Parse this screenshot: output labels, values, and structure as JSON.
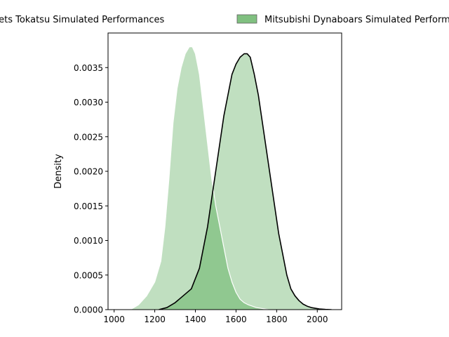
{
  "chart_data": {
    "type": "area",
    "title": "",
    "xlabel": "",
    "ylabel": "Density",
    "xlim": [
      970,
      2120
    ],
    "ylim": [
      0,
      0.004
    ],
    "x_ticks": [
      1000,
      1200,
      1400,
      1600,
      1800,
      2000
    ],
    "x_tick_labels": [
      "1000",
      "1200",
      "1400",
      "1600",
      "1800",
      "2000"
    ],
    "y_ticks": [
      0,
      0.0005,
      0.001,
      0.0015,
      0.002,
      0.0025,
      0.003,
      0.0035
    ],
    "y_tick_labels": [
      "0.0000",
      "0.0005",
      "0.0010",
      "0.0015",
      "0.0020",
      "0.0025",
      "0.0030",
      "0.0035"
    ],
    "legend_position": "top-center",
    "grid": false,
    "series": [
      {
        "name": "Green Rockets Tokatsu Simulated Performances",
        "fill_color": "#c0dfc0",
        "edge_color": "#ffffff",
        "x": [
          1080,
          1120,
          1160,
          1200,
          1230,
          1250,
          1270,
          1290,
          1310,
          1330,
          1350,
          1370,
          1385,
          1400,
          1420,
          1440,
          1460,
          1480,
          1500,
          1520,
          1540,
          1560,
          1580,
          1600,
          1620,
          1640,
          1660,
          1680,
          1700,
          1720,
          1740,
          1760
        ],
        "y": [
          0.0,
          7e-05,
          0.0002,
          0.0004,
          0.0007,
          0.0012,
          0.0019,
          0.0027,
          0.0032,
          0.0035,
          0.0037,
          0.0038,
          0.0038,
          0.0037,
          0.0034,
          0.0029,
          0.0024,
          0.0019,
          0.0015,
          0.0012,
          0.0009,
          0.0006,
          0.0004,
          0.00025,
          0.00015,
          0.0001,
          7e-05,
          5e-05,
          3e-05,
          2e-05,
          1e-05,
          0.0
        ]
      },
      {
        "name": "Mitsubishi Dynaboars Simulated Performances",
        "fill_color": "#c0dfc0",
        "edge_color": "#000000",
        "x": [
          1220,
          1260,
          1300,
          1340,
          1380,
          1420,
          1460,
          1480,
          1500,
          1520,
          1540,
          1560,
          1580,
          1600,
          1620,
          1640,
          1655,
          1670,
          1690,
          1710,
          1730,
          1750,
          1770,
          1790,
          1810,
          1830,
          1850,
          1870,
          1890,
          1910,
          1930,
          1950,
          1970,
          1990,
          2010,
          2040,
          2070
        ],
        "y": [
          0.0,
          3e-05,
          0.0001,
          0.0002,
          0.0003,
          0.0006,
          0.0012,
          0.0016,
          0.002,
          0.0024,
          0.0028,
          0.0031,
          0.0034,
          0.00355,
          0.00365,
          0.0037,
          0.0037,
          0.00365,
          0.0034,
          0.0031,
          0.0027,
          0.0023,
          0.0019,
          0.0015,
          0.0011,
          0.0008,
          0.0005,
          0.0003,
          0.0002,
          0.00013,
          8e-05,
          5e-05,
          3e-05,
          2e-05,
          1e-05,
          3e-06,
          0.0
        ]
      }
    ],
    "overlap_color": "#90c890"
  }
}
